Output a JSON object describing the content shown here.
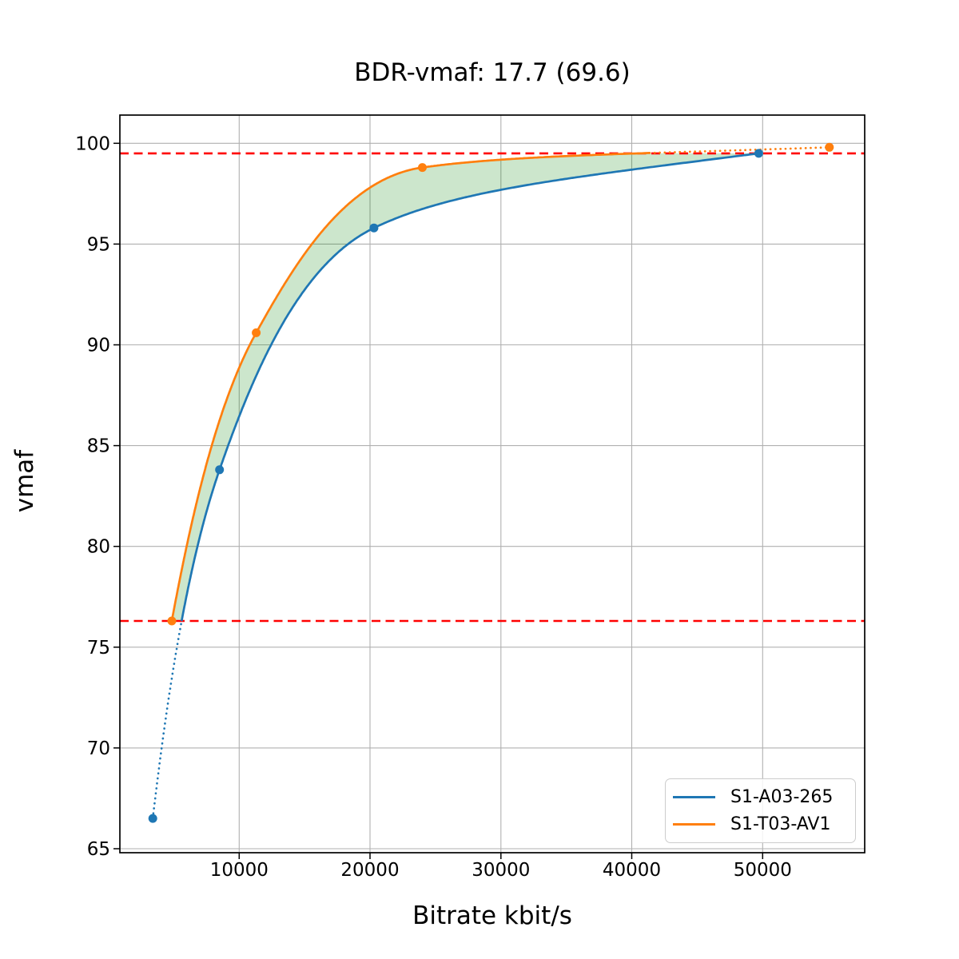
{
  "chart_data": {
    "type": "line",
    "title": "BDR-vmaf: 17.7 (69.6)",
    "xlabel": "Bitrate kbit/s",
    "ylabel": "vmaf",
    "xlim": [
      883,
      57800
    ],
    "ylim": [
      64.8,
      101.4
    ],
    "xticks": [
      10000,
      20000,
      30000,
      40000,
      50000
    ],
    "yticks": [
      65,
      70,
      75,
      80,
      85,
      90,
      95,
      100
    ],
    "grid": true,
    "grid_color": "#b0b0b0",
    "background": "#ffffff",
    "legend_position": "lower-right",
    "series": [
      {
        "name": "S1-A03-265",
        "color": "#1f77b4",
        "marker": "circle",
        "points": [
          [
            3400,
            66.5
          ],
          [
            8500,
            83.8
          ],
          [
            20300,
            95.8
          ],
          [
            49700,
            99.5
          ]
        ]
      },
      {
        "name": "S1-T03-AV1",
        "color": "#ff7f0e",
        "marker": "circle",
        "points": [
          [
            4850,
            76.3
          ],
          [
            11300,
            90.6
          ],
          [
            24000,
            98.8
          ],
          [
            55100,
            99.8
          ]
        ]
      }
    ],
    "bd_rate_interval": {
      "vmaf_low": 76.3,
      "vmaf_high": 99.5,
      "line_color": "#ff0000",
      "line_style": "dashed"
    },
    "shaded_area": {
      "between_series": true,
      "color": "#008000",
      "opacity": 0.2
    },
    "annotations": {
      "bdr_value": "17.7",
      "bdr_secondary": "69.6"
    }
  }
}
